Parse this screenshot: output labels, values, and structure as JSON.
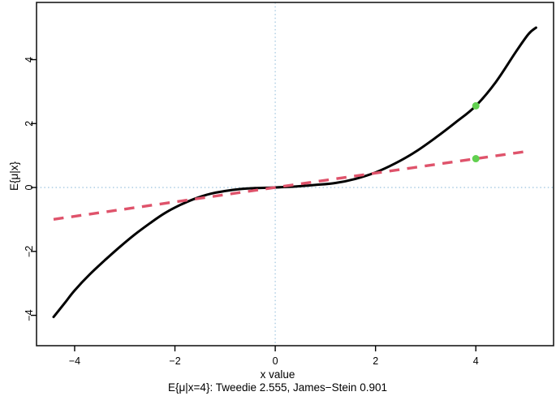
{
  "figure": {
    "background_color": "#ffffff",
    "border_color": "#1a1a1a"
  },
  "chart_data": {
    "type": "line",
    "title": "",
    "xlabel": "x value",
    "ylabel": "E{μ|x}",
    "caption": "E{μ|x=4}: Tweedie 2.555, James−Stein 0.901",
    "xlim": [
      -4.76,
      5.55
    ],
    "ylim": [
      -4.95,
      5.79
    ],
    "x_ticks": [
      -4,
      -2,
      0,
      2,
      4
    ],
    "x_tick_labels": [
      "−4",
      "−2",
      "0",
      "2",
      "4"
    ],
    "y_ticks": [
      -4,
      -2,
      0,
      2,
      4
    ],
    "y_tick_labels": [
      "−4",
      "−2",
      "0",
      "2",
      "4"
    ],
    "grid": "off",
    "legend": "none",
    "reference_lines": {
      "horizontal_at": 0,
      "vertical_at": 0,
      "color": "#A4C8E1",
      "style": "dotted"
    },
    "series": [
      {
        "name": "Tweedie estimate curve",
        "style": "solid",
        "color": "#000000",
        "x": [
          -4.42,
          -4.2,
          -4.0,
          -3.7,
          -3.4,
          -3.1,
          -2.8,
          -2.5,
          -2.2,
          -1.9,
          -1.6,
          -1.3,
          -1.0,
          -0.7,
          -0.4,
          0.0,
          0.4,
          0.8,
          1.2,
          1.6,
          2.0,
          2.4,
          2.8,
          3.2,
          3.6,
          4.0,
          4.4,
          4.8,
          5.05,
          5.2
        ],
        "y": [
          -4.05,
          -3.62,
          -3.22,
          -2.72,
          -2.28,
          -1.86,
          -1.47,
          -1.12,
          -0.8,
          -0.55,
          -0.35,
          -0.2,
          -0.11,
          -0.05,
          -0.02,
          0.0,
          0.03,
          0.08,
          0.14,
          0.27,
          0.47,
          0.76,
          1.12,
          1.56,
          2.04,
          2.555,
          3.3,
          4.25,
          4.8,
          5.0
        ]
      },
      {
        "name": "James-Stein line",
        "style": "dashed",
        "color": "#DF536B",
        "x": [
          -4.42,
          5.08
        ],
        "y": [
          -0.996,
          1.144
        ]
      },
      {
        "name": "highlight points at x=4",
        "style": "points",
        "color": "#61D04F",
        "x": [
          4,
          4
        ],
        "y": [
          2.555,
          0.901
        ]
      }
    ],
    "annotations": {
      "tweedie_at_x4": 2.555,
      "james_stein_at_x4": 0.901
    }
  }
}
